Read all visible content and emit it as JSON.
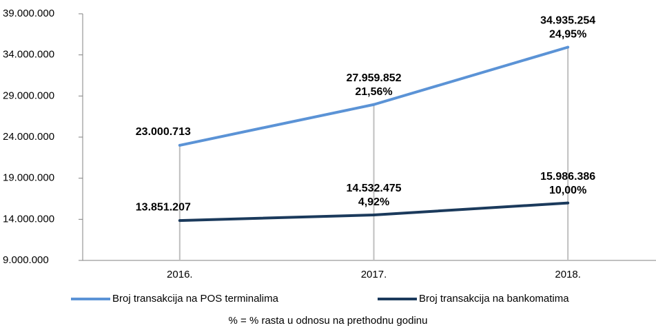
{
  "chart_data": {
    "type": "line",
    "categories": [
      "2016.",
      "2017.",
      "2018."
    ],
    "series": [
      {
        "name": "Broj transakcija na POS terminalima",
        "color": "#5b93d6",
        "values": [
          23000713,
          27959852,
          34935254
        ],
        "value_labels": [
          "23.000.713",
          "27.959.852",
          "34.935.254"
        ],
        "growth": [
          null,
          21.56,
          24.95
        ],
        "growth_labels": [
          null,
          "21,56%",
          "24,95%"
        ]
      },
      {
        "name": "Broj transakcija na bankomatima",
        "color": "#1b3a5c",
        "values": [
          13851207,
          14532475,
          15986386
        ],
        "value_labels": [
          "13.851.207",
          "14.532.475",
          "15.986.386"
        ],
        "growth": [
          null,
          4.92,
          10.0
        ],
        "growth_labels": [
          null,
          "4,92%",
          "10,00%"
        ]
      }
    ],
    "ylim": [
      9000000,
      39000000
    ],
    "yticks": [
      {
        "value": 9000000,
        "label": "9.000.000"
      },
      {
        "value": 14000000,
        "label": "14.000.000"
      },
      {
        "value": 19000000,
        "label": "19.000.000"
      },
      {
        "value": 24000000,
        "label": "24.000.000"
      },
      {
        "value": 29000000,
        "label": "29.000.000"
      },
      {
        "value": 34000000,
        "label": "34.000.000"
      },
      {
        "value": 39000000,
        "label": "39.000.000"
      }
    ],
    "grid": false,
    "legend": "bottom",
    "note": "% = % rasta u odnosu na prethodnu godinu"
  }
}
